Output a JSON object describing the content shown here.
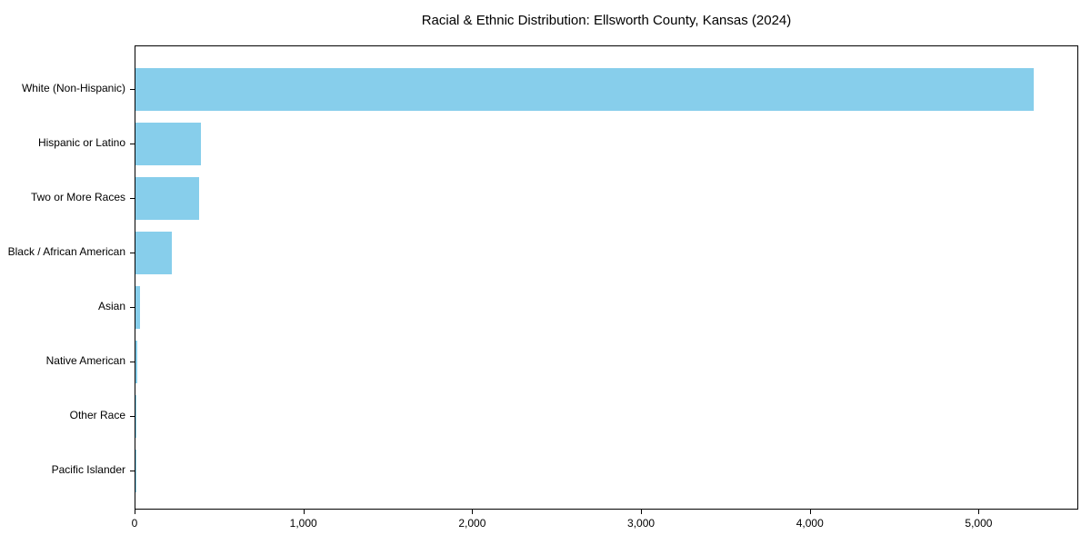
{
  "title": "Racial & Ethnic Distribution: Ellsworth County, Kansas (2024)",
  "colors": {
    "bar": "#87CEEB",
    "axis": "#000000",
    "text": "#000000",
    "background": "#ffffff"
  },
  "chart_data": {
    "type": "bar",
    "orientation": "horizontal",
    "title": "Racial & Ethnic Distribution: Ellsworth County, Kansas (2024)",
    "categories": [
      "White (Non-Hispanic)",
      "Hispanic or Latino",
      "Two or More Races",
      "Black / African American",
      "Asian",
      "Native American",
      "Other Race",
      "Pacific Islander"
    ],
    "values": [
      5320,
      390,
      375,
      215,
      28,
      10,
      6,
      2
    ],
    "bar_color": "#87CEEB",
    "xlabel": "",
    "ylabel": "",
    "xlim": [
      0,
      5590
    ],
    "xticks": [
      0,
      1000,
      2000,
      3000,
      4000,
      5000
    ],
    "xtick_labels": [
      "0",
      "1,000",
      "2,000",
      "3,000",
      "4,000",
      "5,000"
    ],
    "grid": false,
    "legend": null
  }
}
